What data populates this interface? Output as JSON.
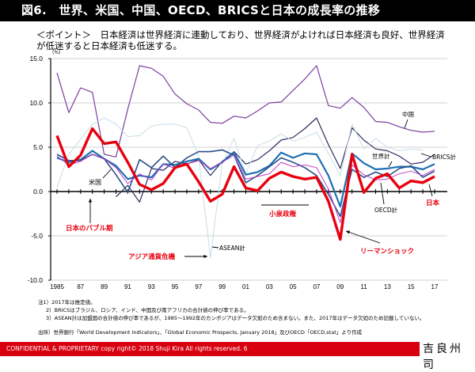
{
  "title": "図6.　世界、米国、中国、OECD、BRICSと日本の成長率の推移",
  "point": "＜ポイント＞　日本経済は世界経済に連動しており、世界経済がよければ日本経済も良好、世界経済が低迷すると日本経済も低迷する。",
  "chart_data": {
    "type": "line",
    "title": "世界、米国、中国、OECD、BRICSと日本の成長率の推移",
    "ylabel": "(%)",
    "xlabel": "",
    "ylim": [
      -10,
      15
    ],
    "yticks": [
      "15.0",
      "10.0",
      "5.0",
      "0.0",
      "-5.0",
      "-10.0"
    ],
    "ytick_values": [
      15,
      10,
      5,
      0,
      -5,
      -10
    ],
    "x": [
      1985,
      1986,
      1987,
      1988,
      1989,
      1990,
      1991,
      1992,
      1993,
      1994,
      1995,
      1996,
      1997,
      1998,
      1999,
      2000,
      2001,
      2002,
      2003,
      2004,
      2005,
      2006,
      2007,
      2008,
      2009,
      2010,
      2011,
      2012,
      2013,
      2014,
      2015,
      2016,
      2017
    ],
    "xtick_labels": [
      "1985",
      "87",
      "89",
      "91",
      "93",
      "95",
      "97",
      "99",
      "01",
      "03",
      "05",
      "07",
      "09",
      "11",
      "13",
      "15",
      "17"
    ],
    "grid": true,
    "series": [
      {
        "name": "中国",
        "color": "#7a3f9d",
        "width": 1.2,
        "values": [
          13.4,
          8.9,
          11.7,
          11.2,
          4.2,
          3.9,
          9.3,
          14.2,
          13.9,
          13.0,
          11.0,
          9.9,
          9.2,
          7.8,
          7.7,
          8.5,
          8.3,
          9.1,
          10.0,
          10.1,
          11.4,
          12.7,
          14.2,
          9.7,
          9.4,
          10.6,
          9.5,
          7.9,
          7.8,
          7.3,
          6.9,
          6.7,
          6.8
        ]
      },
      {
        "name": "BRICS計",
        "color": "#2e2a5e",
        "width": 1.2,
        "values": [
          null,
          null,
          null,
          null,
          null,
          -0.6,
          0.7,
          -1.2,
          2.6,
          2.4,
          3.4,
          3.1,
          3.6,
          1.8,
          3.4,
          4.5,
          3.1,
          3.6,
          4.6,
          5.8,
          6.1,
          7.1,
          8.3,
          5.3,
          2.6,
          7.2,
          5.8,
          4.8,
          4.6,
          4.0,
          3.1,
          3.3,
          4.2
        ]
      },
      {
        "name": "ASEAN計",
        "color": "#c7dde6",
        "width": 1.0,
        "values": [
          0.5,
          4.2,
          5.9,
          7.6,
          8.3,
          7.6,
          6.2,
          6.3,
          7.4,
          7.6,
          7.6,
          7.2,
          4.0,
          -7.5,
          3.1,
          6.0,
          2.0,
          5.2,
          5.7,
          6.5,
          5.7,
          6.1,
          6.7,
          4.3,
          1.8,
          7.6,
          4.8,
          6.0,
          5.0,
          4.6,
          4.8,
          4.7,
          null
        ]
      },
      {
        "name": "世界計",
        "color": "#1f6fb2",
        "width": 2.2,
        "values": [
          3.8,
          3.3,
          3.6,
          4.6,
          3.7,
          2.9,
          1.4,
          1.8,
          1.6,
          3.1,
          3.0,
          3.4,
          3.7,
          2.5,
          3.3,
          4.4,
          1.9,
          2.2,
          2.9,
          4.4,
          3.8,
          4.3,
          4.2,
          1.8,
          -1.7,
          4.3,
          3.2,
          2.5,
          2.6,
          2.8,
          2.8,
          2.5,
          3.1
        ]
      },
      {
        "name": "米国",
        "color": "#2a4f8a",
        "width": 1.6,
        "values": [
          4.2,
          3.5,
          3.5,
          4.2,
          3.7,
          1.9,
          -0.1,
          3.6,
          2.7,
          4.0,
          2.7,
          3.8,
          4.5,
          4.5,
          4.7,
          4.1,
          1.0,
          1.8,
          2.8,
          3.8,
          3.3,
          2.7,
          1.8,
          -0.3,
          -2.8,
          2.5,
          1.6,
          2.2,
          1.7,
          2.6,
          2.9,
          1.6,
          2.3
        ]
      },
      {
        "name": "OECD計",
        "color": "#c040c8",
        "width": 1.0,
        "values": [
          4.0,
          3.0,
          3.4,
          4.2,
          3.7,
          2.7,
          0.9,
          2.0,
          1.3,
          3.1,
          2.6,
          3.1,
          3.5,
          2.6,
          3.3,
          4.1,
          1.4,
          1.7,
          2.0,
          3.3,
          2.8,
          3.0,
          2.7,
          0.3,
          -3.5,
          3.0,
          1.9,
          1.3,
          1.4,
          2.0,
          2.3,
          1.8,
          2.5
        ]
      },
      {
        "name": "日本",
        "color": "#e8000e",
        "width": 3.4,
        "values": [
          6.3,
          2.8,
          4.1,
          7.1,
          5.4,
          5.6,
          3.3,
          0.8,
          0.2,
          0.9,
          2.7,
          3.1,
          1.1,
          -1.1,
          -0.3,
          2.8,
          0.4,
          0.1,
          1.5,
          2.2,
          1.7,
          1.4,
          1.6,
          -1.1,
          -5.4,
          4.2,
          -0.1,
          1.5,
          2.0,
          0.4,
          1.2,
          1.0,
          1.7
        ]
      }
    ],
    "annotations": [
      {
        "text": "米国",
        "color": "#000000"
      },
      {
        "text": "日本のバブル期",
        "color": "#e8000e"
      },
      {
        "text": "アジア通貨危機",
        "color": "#e8000e"
      },
      {
        "text": "ASEAN計",
        "color": "#000000"
      },
      {
        "text": "小泉政権",
        "color": "#e8000e"
      },
      {
        "text": "リーマンショック",
        "color": "#e8000e"
      },
      {
        "text": "中国",
        "color": "#000000"
      },
      {
        "text": "BRICS計",
        "color": "#000000"
      },
      {
        "text": "世界計",
        "color": "#000000"
      },
      {
        "text": "OECD計",
        "color": "#000000"
      },
      {
        "text": "日本",
        "color": "#e8000e"
      }
    ]
  },
  "notes": [
    "注1）2017年は推定値。",
    "2）BRICSはブラジル、ロシア、インド、中国及び南アフリカの合計値の伸び率である。",
    "3）ASEAN計は加盟国の合計値の伸び率であるが、1985～1992年のカンボジアはデータ欠如のため含まない。また、2017年はデータ欠如のため記載していない。"
  ],
  "source": "出所）世界銀行「World Development Indicators」、「Global Economic Prospects, January 2018」及びOECD「OECD.stat」より作成",
  "footer": {
    "text": "CONFIDENTIAL & PROPRIETARY   copy right© 2018 Shuji Kira All rights reserved.     6",
    "signature": "吉良州司"
  }
}
